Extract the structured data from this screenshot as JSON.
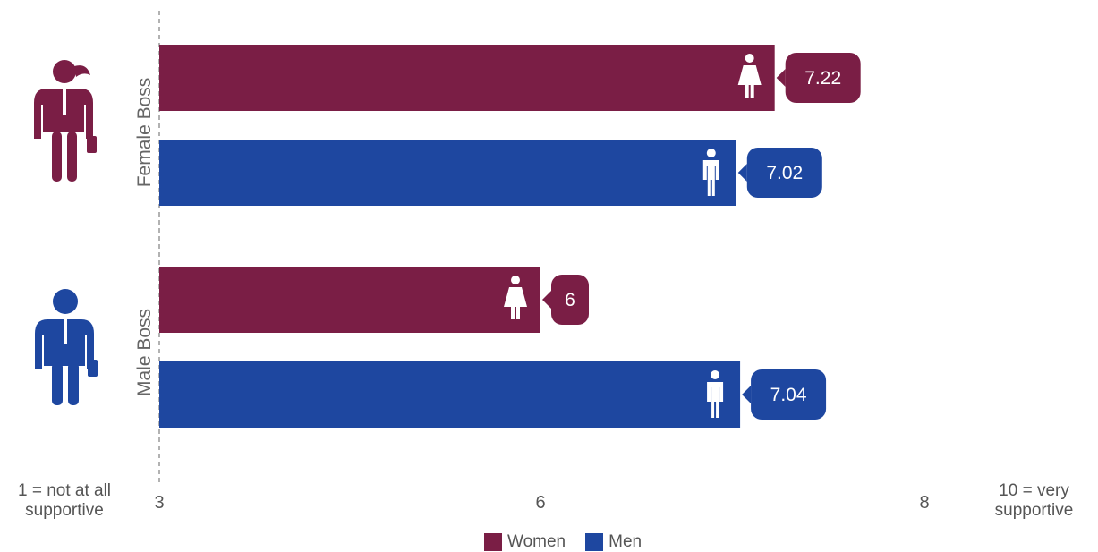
{
  "chart_data": {
    "type": "bar",
    "orientation": "horizontal",
    "categories": [
      "Female Boss",
      "Male Boss"
    ],
    "series": [
      {
        "name": "Women",
        "values": [
          7.22,
          6
        ],
        "labels": [
          "7.22",
          "6"
        ],
        "color": "#7a1e45",
        "icon": "woman-icon"
      },
      {
        "name": "Men",
        "values": [
          7.02,
          7.04
        ],
        "labels": [
          "7.02",
          "7.04"
        ],
        "color": "#1e47a0",
        "icon": "man-icon"
      }
    ],
    "x_ticks": [
      "3",
      "6",
      "8"
    ],
    "x_tick_values": [
      3,
      6,
      8
    ],
    "xlim": [
      3,
      8
    ],
    "scale_min_label": "1 = not at all supportive",
    "scale_max_label": "10 = very supportive",
    "legend_position": "bottom",
    "grid": false,
    "category_icons": [
      "female-boss-icon",
      "male-boss-icon"
    ]
  },
  "scale": {
    "min_line1": "1 = not at all",
    "min_line2": "supportive",
    "max_line1": "10 = very",
    "max_line2": "supportive"
  },
  "legend": {
    "women": "Women",
    "men": "Men"
  },
  "colors": {
    "women": "#7a1e45",
    "men": "#1e47a0",
    "axis_text": "#555555"
  }
}
